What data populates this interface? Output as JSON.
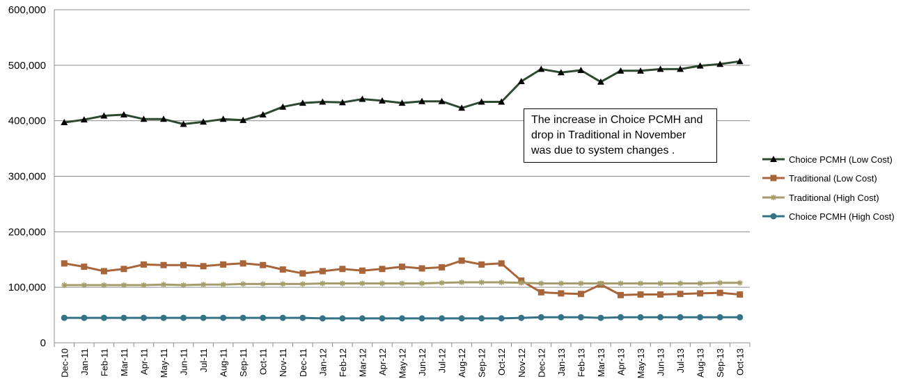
{
  "chart_data": {
    "type": "line",
    "title": "",
    "xlabel": "",
    "ylabel": "",
    "ylim": [
      0,
      600000
    ],
    "yticks": [
      "0",
      "100,000",
      "200,000",
      "300,000",
      "400,000",
      "500,000",
      "600,000"
    ],
    "ytick_values": [
      0,
      100000,
      200000,
      300000,
      400000,
      500000,
      600000
    ],
    "grid": "horizontal",
    "legend_position": "right",
    "categories": [
      "Dec-10",
      "Jan-11",
      "Feb-11",
      "Mar-11",
      "Apr-11",
      "May-11",
      "Jun-11",
      "Jul-11",
      "Aug-11",
      "Sep-11",
      "Oct-11",
      "Nov-11",
      "Dec-11",
      "Jan-12",
      "Feb-12",
      "Mar-12",
      "Apr-12",
      "May-12",
      "Jun-12",
      "Jul-12",
      "Aug-12",
      "Sep-12",
      "Oct-12",
      "Nov-12",
      "Dec-12",
      "Jan-13",
      "Feb-13",
      "Mar-13",
      "Apr-13",
      "May-13",
      "Jun-13",
      "Jul-13",
      "Aug-13",
      "Sep-13",
      "Oct-13"
    ],
    "series": [
      {
        "name": "Choice PCMH (Low Cost)",
        "color": "#2d4a30",
        "marker": "triangle",
        "values": [
          397000,
          402000,
          409000,
          411000,
          403000,
          403000,
          394000,
          398000,
          403000,
          401000,
          411000,
          425000,
          432000,
          434000,
          433000,
          439000,
          436000,
          432000,
          435000,
          435000,
          423000,
          434000,
          434000,
          471000,
          493000,
          487000,
          491000,
          470000,
          490000,
          490000,
          493000,
          493000,
          499000,
          502000,
          507000
        ]
      },
      {
        "name": "Traditional (Low Cost)",
        "color": "#a8653a",
        "marker": "square",
        "values": [
          143000,
          137000,
          129000,
          133000,
          141000,
          140000,
          140000,
          138000,
          141000,
          143000,
          140000,
          132000,
          125000,
          129000,
          133000,
          130000,
          133000,
          137000,
          134000,
          136000,
          148000,
          141000,
          143000,
          112000,
          91000,
          89000,
          88000,
          105000,
          86000,
          87000,
          87000,
          88000,
          89000,
          90000,
          87000
        ]
      },
      {
        "name": "Traditional (High Cost)",
        "color": "#a49c6a",
        "marker": "star",
        "values": [
          104000,
          104000,
          104000,
          104000,
          104000,
          105000,
          104000,
          105000,
          105000,
          106000,
          106000,
          106000,
          106000,
          107000,
          107000,
          107000,
          107000,
          107000,
          107000,
          108000,
          109000,
          109000,
          109000,
          108000,
          107000,
          107000,
          107000,
          107000,
          107000,
          107000,
          107000,
          107000,
          107000,
          108000,
          108000
        ]
      },
      {
        "name": "Choice PCMH (High Cost)",
        "color": "#347287",
        "marker": "circle",
        "values": [
          45000,
          45000,
          45000,
          45000,
          45000,
          45000,
          45000,
          45000,
          45000,
          45000,
          45000,
          45000,
          45000,
          44000,
          44000,
          44000,
          44000,
          44000,
          44000,
          44000,
          44000,
          44000,
          44000,
          45000,
          46000,
          46000,
          46000,
          45000,
          46000,
          46000,
          46000,
          46000,
          46000,
          46000,
          46000
        ]
      }
    ],
    "annotations": [
      "The increase in Choice PCMH and\ndrop in Traditional in November\nwas due to system changes ."
    ]
  }
}
